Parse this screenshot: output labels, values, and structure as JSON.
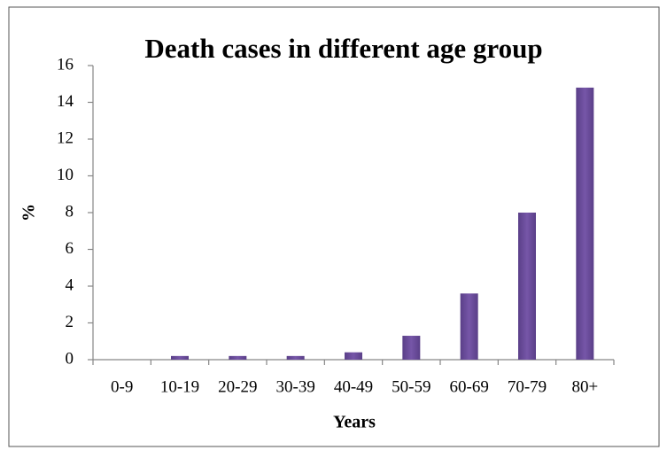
{
  "chart_data": {
    "type": "bar",
    "title": "Death cases in different age group",
    "x_label": "Years",
    "y_label": "%",
    "categories": [
      "0-9",
      "10-19",
      "20-29",
      "30-39",
      "40-49",
      "50-59",
      "60-69",
      "70-79",
      "80+"
    ],
    "values": [
      0,
      0.2,
      0.2,
      0.2,
      0.4,
      1.3,
      3.6,
      8.0,
      14.8
    ],
    "color": "#6b4f9b",
    "ylim": [
      0,
      16
    ],
    "yticks": [
      0,
      2,
      4,
      6,
      8,
      10,
      12,
      14,
      16
    ],
    "grid": false
  }
}
